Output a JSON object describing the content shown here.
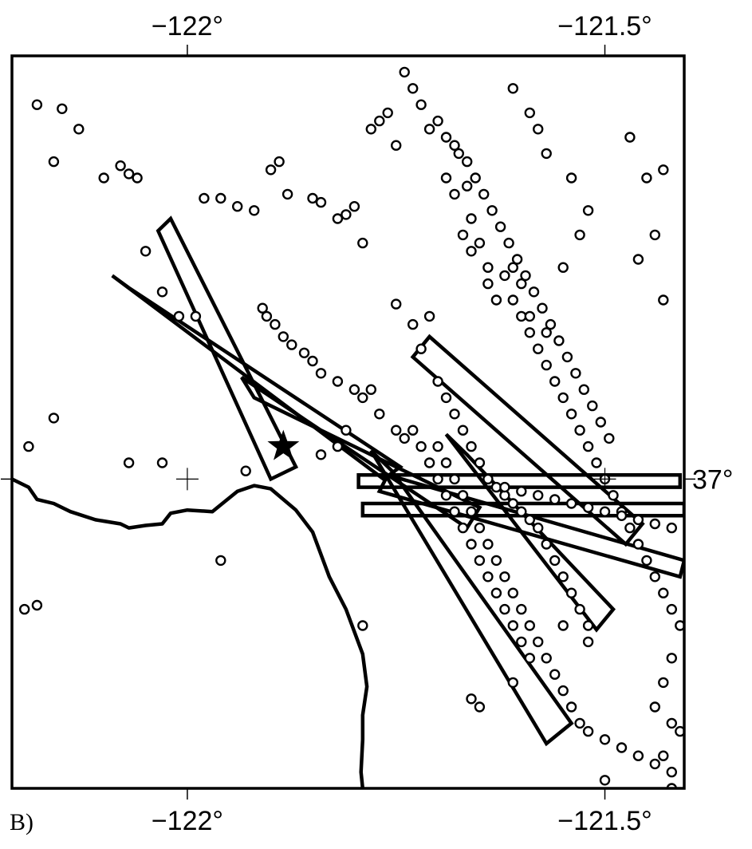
{
  "panel_label": "B)",
  "map": {
    "lon_range": [
      -122.21,
      -121.405
    ],
    "lat_range": [
      36.62,
      37.52
    ],
    "x_ticks": [
      {
        "lon": -122.0,
        "label": "−122°"
      },
      {
        "lon": -121.5,
        "label": "−121.5°"
      }
    ],
    "y_ticks": [
      {
        "lat": 37.0,
        "label": "37°"
      }
    ],
    "crosshairs": [
      {
        "lon": -122.0,
        "lat": 37.0
      },
      {
        "lon": -121.5,
        "lat": 37.0
      }
    ],
    "epicenter": {
      "lon": -121.885,
      "lat": 37.04
    },
    "coastline": [
      [
        -122.21,
        37.0
      ],
      [
        -122.19,
        36.99
      ],
      [
        -122.18,
        36.975
      ],
      [
        -122.16,
        36.97
      ],
      [
        -122.14,
        36.96
      ],
      [
        -122.11,
        36.95
      ],
      [
        -122.08,
        36.945
      ],
      [
        -122.07,
        36.94
      ],
      [
        -122.05,
        36.943
      ],
      [
        -122.03,
        36.945
      ],
      [
        -122.02,
        36.958
      ],
      [
        -122.0,
        36.962
      ],
      [
        -121.97,
        36.96
      ],
      [
        -121.94,
        36.985
      ],
      [
        -121.92,
        36.992
      ],
      [
        -121.9,
        36.988
      ],
      [
        -121.87,
        36.962
      ],
      [
        -121.85,
        36.935
      ],
      [
        -121.83,
        36.88
      ],
      [
        -121.81,
        36.84
      ],
      [
        -121.79,
        36.785
      ],
      [
        -121.785,
        36.745
      ],
      [
        -121.79,
        36.71
      ],
      [
        -121.79,
        36.68
      ],
      [
        -121.792,
        36.64
      ],
      [
        -121.79,
        36.62
      ]
    ],
    "boxes": [
      [
        [
          -122.09,
          37.25
        ],
        [
          -122.07,
          37.235
        ],
        [
          -121.745,
          37.015
        ],
        [
          -121.765,
          37.0
        ]
      ],
      [
        [
          -122.02,
          37.32
        ],
        [
          -122.035,
          37.305
        ],
        [
          -121.9,
          37.0
        ],
        [
          -121.87,
          37.015
        ]
      ],
      [
        [
          -121.475,
          36.92
        ],
        [
          -121.73,
          37.15
        ],
        [
          -121.71,
          37.175
        ],
        [
          -121.455,
          36.945
        ]
      ],
      [
        [
          -121.935,
          37.125
        ],
        [
          -121.92,
          37.1
        ],
        [
          -121.65,
          36.965
        ],
        [
          -121.665,
          36.94
        ]
      ],
      [
        [
          -121.78,
          37.035
        ],
        [
          -121.755,
          37.01
        ],
        [
          -121.54,
          36.7
        ],
        [
          -121.57,
          36.675
        ]
      ],
      [
        [
          -121.69,
          37.055
        ],
        [
          -121.665,
          37.03
        ],
        [
          -121.49,
          36.84
        ],
        [
          -121.51,
          36.815
        ]
      ],
      [
        [
          -121.79,
          36.97
        ],
        [
          -121.405,
          36.97
        ],
        [
          -121.405,
          36.955
        ],
        [
          -121.79,
          36.955
        ]
      ],
      [
        [
          -121.41,
          37.005
        ],
        [
          -121.795,
          37.005
        ],
        [
          -121.795,
          36.99
        ],
        [
          -121.41,
          36.99
        ]
      ],
      [
        [
          -121.77,
          36.985
        ],
        [
          -121.41,
          36.88
        ],
        [
          -121.405,
          36.9
        ],
        [
          -121.76,
          37.005
        ]
      ]
    ],
    "earthquakes": [
      [
        -122.18,
        37.46
      ],
      [
        -122.15,
        37.455
      ],
      [
        -122.13,
        37.43
      ],
      [
        -122.16,
        37.39
      ],
      [
        -122.1,
        37.37
      ],
      [
        -122.08,
        37.385
      ],
      [
        -122.07,
        37.375
      ],
      [
        -122.06,
        37.37
      ],
      [
        -122.05,
        37.28
      ],
      [
        -122.03,
        37.23
      ],
      [
        -122.01,
        37.2
      ],
      [
        -121.99,
        37.2
      ],
      [
        -121.98,
        37.345
      ],
      [
        -121.96,
        37.345
      ],
      [
        -121.94,
        37.335
      ],
      [
        -121.92,
        37.33
      ],
      [
        -121.9,
        37.38
      ],
      [
        -121.89,
        37.39
      ],
      [
        -121.88,
        37.35
      ],
      [
        -121.85,
        37.345
      ],
      [
        -121.84,
        37.34
      ],
      [
        -121.82,
        37.32
      ],
      [
        -121.81,
        37.325
      ],
      [
        -121.8,
        37.335
      ],
      [
        -121.79,
        37.29
      ],
      [
        -121.78,
        37.43
      ],
      [
        -121.77,
        37.44
      ],
      [
        -121.76,
        37.45
      ],
      [
        -121.75,
        37.41
      ],
      [
        -121.74,
        37.5
      ],
      [
        -121.73,
        37.48
      ],
      [
        -121.72,
        37.46
      ],
      [
        -121.71,
        37.43
      ],
      [
        -121.69,
        37.37
      ],
      [
        -121.68,
        37.35
      ],
      [
        -121.67,
        37.3
      ],
      [
        -121.66,
        37.32
      ],
      [
        -121.65,
        37.29
      ],
      [
        -121.64,
        37.26
      ],
      [
        -121.62,
        37.25
      ],
      [
        -121.61,
        37.22
      ],
      [
        -121.6,
        37.2
      ],
      [
        -121.59,
        37.18
      ],
      [
        -121.58,
        37.16
      ],
      [
        -121.57,
        37.14
      ],
      [
        -121.56,
        37.12
      ],
      [
        -121.55,
        37.1
      ],
      [
        -121.54,
        37.08
      ],
      [
        -121.53,
        37.06
      ],
      [
        -121.52,
        37.04
      ],
      [
        -121.51,
        37.02
      ],
      [
        -121.5,
        37.0
      ],
      [
        -121.49,
        36.98
      ],
      [
        -121.48,
        36.96
      ],
      [
        -121.47,
        36.94
      ],
      [
        -121.46,
        36.92
      ],
      [
        -121.45,
        36.9
      ],
      [
        -121.44,
        36.88
      ],
      [
        -121.43,
        36.86
      ],
      [
        -121.42,
        36.84
      ],
      [
        -121.41,
        36.82
      ],
      [
        -121.42,
        36.78
      ],
      [
        -121.43,
        36.75
      ],
      [
        -121.44,
        36.72
      ],
      [
        -121.42,
        36.7
      ],
      [
        -121.41,
        36.69
      ],
      [
        -121.68,
        37.41
      ],
      [
        -121.665,
        37.39
      ],
      [
        -121.655,
        37.37
      ],
      [
        -121.645,
        37.35
      ],
      [
        -121.635,
        37.33
      ],
      [
        -121.625,
        37.31
      ],
      [
        -121.615,
        37.29
      ],
      [
        -121.605,
        37.27
      ],
      [
        -121.595,
        37.25
      ],
      [
        -121.585,
        37.23
      ],
      [
        -121.575,
        37.21
      ],
      [
        -121.565,
        37.19
      ],
      [
        -121.555,
        37.17
      ],
      [
        -121.545,
        37.15
      ],
      [
        -121.535,
        37.13
      ],
      [
        -121.525,
        37.11
      ],
      [
        -121.515,
        37.09
      ],
      [
        -121.505,
        37.07
      ],
      [
        -121.495,
        37.05
      ],
      [
        -121.7,
        37.44
      ],
      [
        -121.69,
        37.42
      ],
      [
        -121.675,
        37.4
      ],
      [
        -121.665,
        37.36
      ],
      [
        -121.66,
        37.28
      ],
      [
        -121.64,
        37.24
      ],
      [
        -121.63,
        37.22
      ],
      [
        -121.61,
        37.26
      ],
      [
        -121.6,
        37.24
      ],
      [
        -121.59,
        37.2
      ],
      [
        -121.57,
        37.18
      ],
      [
        -121.61,
        37.48
      ],
      [
        -121.59,
        37.45
      ],
      [
        -121.58,
        37.43
      ],
      [
        -121.57,
        37.4
      ],
      [
        -121.54,
        37.37
      ],
      [
        -121.52,
        37.33
      ],
      [
        -121.47,
        37.42
      ],
      [
        -121.45,
        37.37
      ],
      [
        -121.43,
        37.38
      ],
      [
        -121.44,
        37.3
      ],
      [
        -121.46,
        37.27
      ],
      [
        -121.43,
        37.22
      ],
      [
        -121.53,
        37.3
      ],
      [
        -121.55,
        37.26
      ],
      [
        -121.75,
        37.215
      ],
      [
        -121.73,
        37.19
      ],
      [
        -121.71,
        37.2
      ],
      [
        -121.72,
        37.16
      ],
      [
        -121.7,
        37.12
      ],
      [
        -121.69,
        37.1
      ],
      [
        -121.68,
        37.08
      ],
      [
        -121.67,
        37.06
      ],
      [
        -121.66,
        37.04
      ],
      [
        -121.65,
        37.02
      ],
      [
        -121.64,
        37.0
      ],
      [
        -121.63,
        36.99
      ],
      [
        -121.62,
        36.98
      ],
      [
        -121.61,
        36.97
      ],
      [
        -121.6,
        36.96
      ],
      [
        -121.59,
        36.95
      ],
      [
        -121.58,
        36.94
      ],
      [
        -121.57,
        36.92
      ],
      [
        -121.56,
        36.9
      ],
      [
        -121.55,
        36.88
      ],
      [
        -121.54,
        36.86
      ],
      [
        -121.53,
        36.84
      ],
      [
        -121.52,
        36.82
      ],
      [
        -121.7,
        37.04
      ],
      [
        -121.69,
        37.02
      ],
      [
        -121.68,
        37.0
      ],
      [
        -121.67,
        36.98
      ],
      [
        -121.66,
        36.96
      ],
      [
        -121.65,
        36.94
      ],
      [
        -121.64,
        36.92
      ],
      [
        -121.63,
        36.9
      ],
      [
        -121.62,
        36.88
      ],
      [
        -121.61,
        36.86
      ],
      [
        -121.6,
        36.84
      ],
      [
        -121.59,
        36.82
      ],
      [
        -121.58,
        36.8
      ],
      [
        -121.57,
        36.78
      ],
      [
        -121.56,
        36.76
      ],
      [
        -121.55,
        36.74
      ],
      [
        -121.54,
        36.72
      ],
      [
        -121.53,
        36.7
      ],
      [
        -121.52,
        36.69
      ],
      [
        -121.5,
        36.68
      ],
      [
        -121.48,
        36.67
      ],
      [
        -121.46,
        36.66
      ],
      [
        -121.44,
        36.65
      ],
      [
        -121.42,
        36.64
      ],
      [
        -121.73,
        37.06
      ],
      [
        -121.72,
        37.04
      ],
      [
        -121.71,
        37.02
      ],
      [
        -121.7,
        37.0
      ],
      [
        -121.69,
        36.98
      ],
      [
        -121.68,
        36.96
      ],
      [
        -121.67,
        36.94
      ],
      [
        -121.66,
        36.92
      ],
      [
        -121.65,
        36.9
      ],
      [
        -121.64,
        36.88
      ],
      [
        -121.63,
        36.86
      ],
      [
        -121.62,
        36.84
      ],
      [
        -121.61,
        36.82
      ],
      [
        -121.6,
        36.8
      ],
      [
        -121.59,
        36.78
      ],
      [
        -121.62,
        36.99
      ],
      [
        -121.6,
        36.985
      ],
      [
        -121.58,
        36.98
      ],
      [
        -121.56,
        36.975
      ],
      [
        -121.54,
        36.97
      ],
      [
        -121.52,
        36.965
      ],
      [
        -121.5,
        36.96
      ],
      [
        -121.48,
        36.955
      ],
      [
        -121.46,
        36.95
      ],
      [
        -121.44,
        36.945
      ],
      [
        -121.42,
        36.94
      ],
      [
        -121.91,
        37.21
      ],
      [
        -121.905,
        37.2
      ],
      [
        -121.895,
        37.19
      ],
      [
        -121.885,
        37.175
      ],
      [
        -121.875,
        37.165
      ],
      [
        -121.86,
        37.155
      ],
      [
        -121.85,
        37.145
      ],
      [
        -121.84,
        37.13
      ],
      [
        -121.82,
        37.12
      ],
      [
        -121.8,
        37.11
      ],
      [
        -121.79,
        37.1
      ],
      [
        -121.77,
        37.08
      ],
      [
        -121.75,
        37.06
      ],
      [
        -121.74,
        37.05
      ],
      [
        -122.19,
        37.04
      ],
      [
        -122.16,
        37.075
      ],
      [
        -122.07,
        37.02
      ],
      [
        -122.03,
        37.02
      ],
      [
        -121.93,
        37.01
      ],
      [
        -121.96,
        36.9
      ],
      [
        -121.84,
        37.03
      ],
      [
        -121.82,
        37.04
      ],
      [
        -121.81,
        37.06
      ],
      [
        -121.78,
        37.11
      ],
      [
        -122.195,
        36.84
      ],
      [
        -122.18,
        36.845
      ],
      [
        -121.79,
        36.82
      ],
      [
        -121.55,
        36.82
      ],
      [
        -121.61,
        36.75
      ],
      [
        -121.52,
        36.8
      ],
      [
        -121.66,
        36.73
      ],
      [
        -121.65,
        36.72
      ],
      [
        -121.5,
        36.63
      ],
      [
        -121.43,
        36.66
      ],
      [
        -121.42,
        36.62
      ]
    ]
  }
}
